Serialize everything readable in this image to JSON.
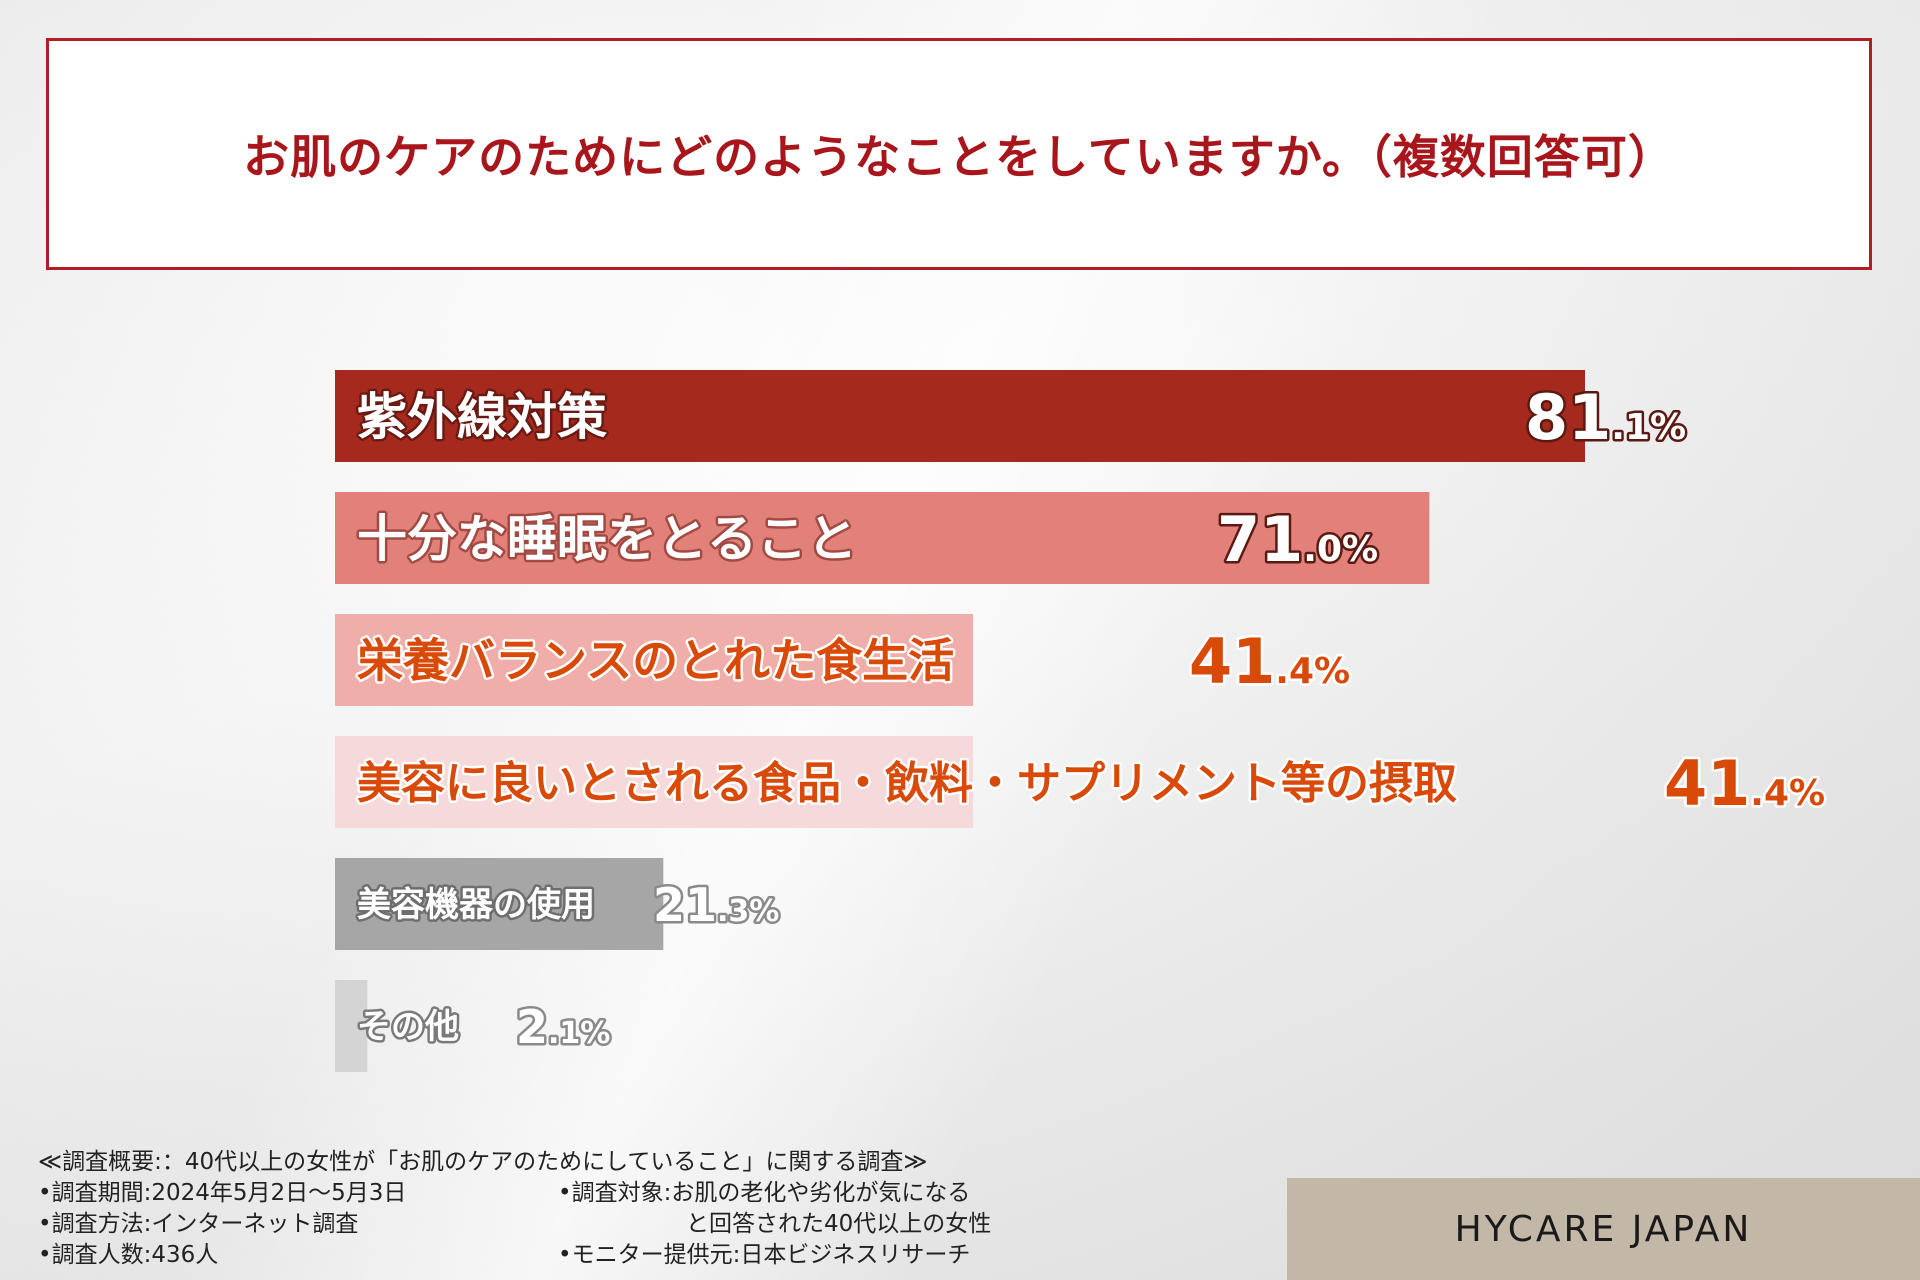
{
  "title": "お肌のケアのためにどのようなことをしていますか。（複数回答可）",
  "chart_data": {
    "type": "bar",
    "orientation": "horizontal",
    "categories": [
      "紫外線対策",
      "十分な睡眠をとること",
      "栄養バランスのとれた食生活",
      "美容に良いとされる食品・飲料・サプリメント等の摂取",
      "美容機器の使用",
      "その他"
    ],
    "values": [
      81.1,
      71.0,
      41.4,
      41.4,
      21.3,
      2.1
    ],
    "value_labels": [
      {
        "big": "81",
        "small": ".1%"
      },
      {
        "big": "71",
        "small": ".0%"
      },
      {
        "big": "41",
        "small": ".4%"
      },
      {
        "big": "41",
        "small": ".4%"
      },
      {
        "big": "21",
        "small": ".3%"
      },
      {
        "big": "2",
        "small": ".1%"
      }
    ],
    "bar_colors": [
      "#a52a1d",
      "#e2807a",
      "#efaeaa",
      "#f6d9db",
      "#a6a6a6",
      "#d4d4d4"
    ],
    "label_colors": [
      "#ffffff",
      "#ffffff",
      "#d94a08",
      "#d94a08",
      "#ffffff",
      "#ffffff"
    ],
    "label_outline_colors": [
      "#6a1a12",
      "#a24a42",
      "#ffffff",
      "#ffffff",
      "#6e6e6e",
      "#7a7a7a"
    ],
    "value_colors": [
      "#ffffff",
      "#ffffff",
      "#d94a08",
      "#d94a08",
      "#ffffff",
      "#ffffff"
    ],
    "value_outline_colors": [
      "#5a1a12",
      "#5a1a12",
      "#ffffff",
      "#ffffff",
      "#8a8a8a",
      "#8a8a8a"
    ]
  },
  "footer": {
    "heading": "≪調査概要:：40代以上の女性が「お肌のケアのためにしていること」に関する調査≫",
    "period": "•調査期間:2024年5月2日〜5月3日",
    "method": "•調査方法:インターネット調査",
    "count": "•調査人数:436人",
    "target_line1": "•調査対象:お肌の老化や劣化が気になる",
    "target_line2": "と回答された40代以上の女性",
    "provider": "•モニター提供元:日本ビジネスリサーチ"
  },
  "brand": "HYCARE JAPAN"
}
